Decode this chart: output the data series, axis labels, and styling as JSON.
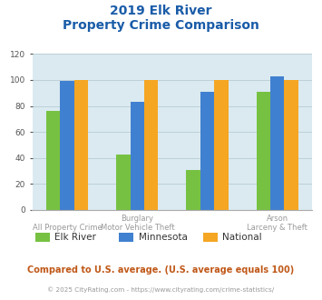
{
  "title_line1": "2019 Elk River",
  "title_line2": "Property Crime Comparison",
  "categories_top": [
    "",
    "Burglary",
    "",
    "Arson"
  ],
  "categories_bottom": [
    "All Property Crime",
    "Motor Vehicle Theft",
    "",
    "Larceny & Theft"
  ],
  "series": {
    "Elk River": [
      76,
      43,
      31,
      91
    ],
    "Minnesota": [
      99,
      83,
      91,
      103
    ],
    "National": [
      100,
      100,
      100,
      100
    ]
  },
  "colors": {
    "Elk River": "#77c142",
    "Minnesota": "#4080d0",
    "National": "#f5a623"
  },
  "ylim": [
    0,
    120
  ],
  "yticks": [
    0,
    20,
    40,
    60,
    80,
    100,
    120
  ],
  "title_color": "#1a5ca8",
  "plot_bg_color": "#daeaf0",
  "footer_text": "Compared to U.S. average. (U.S. average equals 100)",
  "copyright_text": "© 2025 CityRating.com - https://www.cityrating.com/crime-statistics/",
  "footer_color": "#c05818",
  "copyright_color": "#999999",
  "label_color": "#999999",
  "grid_color": "#b8ccd4"
}
